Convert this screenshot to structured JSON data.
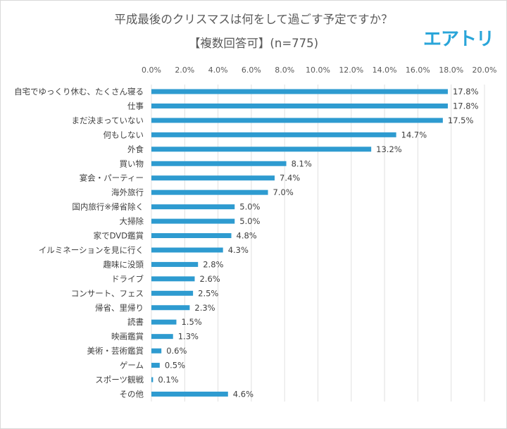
{
  "title_line1": "平成最後のクリスマスは何をして過ごす予定ですか？",
  "title_line2": "【複数回答可】(n=775)",
  "logo_text": "エアトリ",
  "colors": {
    "bar": "#2e9bd0",
    "grid": "#e0e0e0",
    "text": "#404040"
  },
  "chart_data": {
    "type": "bar",
    "orientation": "horizontal",
    "xlim": [
      0,
      20
    ],
    "ticks": [
      "0.0%",
      "2.0%",
      "4.0%",
      "6.0%",
      "8.0%",
      "10.0%",
      "12.0%",
      "14.0%",
      "16.0%",
      "18.0%",
      "20.0%"
    ],
    "tick_values": [
      0,
      2,
      4,
      6,
      8,
      10,
      12,
      14,
      16,
      18,
      20
    ],
    "axis_position": "top",
    "grid": true,
    "categories": [
      "自宅でゆっくり休む、たくさん寝る",
      "仕事",
      "まだ決まっていない",
      "何もしない",
      "外食",
      "買い物",
      "宴会・パーティー",
      "海外旅行",
      "国内旅行※帰省除く",
      "大掃除",
      "家でDVD鑑賞",
      "イルミネーションを見に行く",
      "趣味に没頭",
      "ドライブ",
      "コンサート、フェス",
      "帰省、里帰り",
      "読書",
      "映画鑑賞",
      "美術・芸術鑑賞",
      "ゲーム",
      "スポーツ観戦",
      "その他"
    ],
    "values": [
      17.8,
      17.8,
      17.5,
      14.7,
      13.2,
      8.1,
      7.4,
      7.0,
      5.0,
      5.0,
      4.8,
      4.3,
      2.8,
      2.6,
      2.5,
      2.3,
      1.5,
      1.3,
      0.6,
      0.5,
      0.1,
      4.6
    ],
    "value_labels": [
      "17.8%",
      "17.8%",
      "17.5%",
      "14.7%",
      "13.2%",
      "8.1%",
      "7.4%",
      "7.0%",
      "5.0%",
      "5.0%",
      "4.8%",
      "4.3%",
      "2.8%",
      "2.6%",
      "2.5%",
      "2.3%",
      "1.5%",
      "1.3%",
      "0.6%",
      "0.5%",
      "0.1%",
      "4.6%"
    ]
  }
}
